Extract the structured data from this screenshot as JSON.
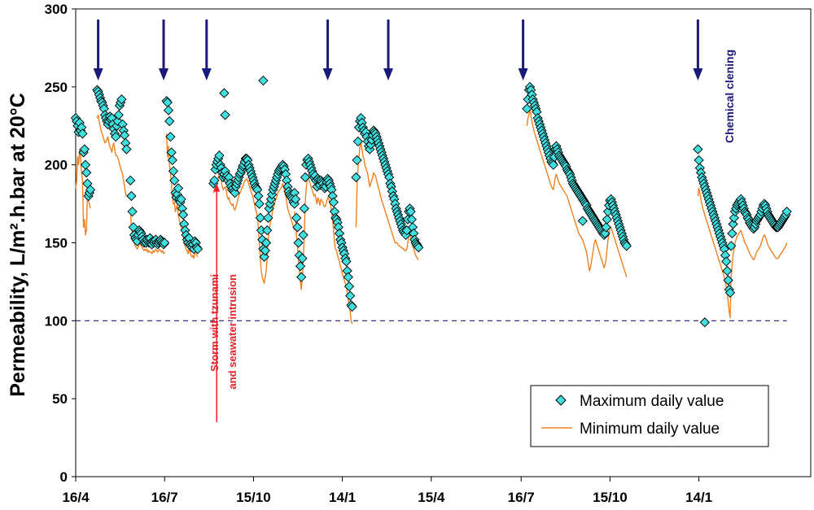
{
  "chart_data": {
    "type": "scatter",
    "title": "",
    "xlabel": "",
    "ylabel": "Permeability, L/m².h.bar at 20°C",
    "ylim": [
      0,
      300
    ],
    "yticks": [
      0,
      50,
      100,
      150,
      200,
      250,
      300
    ],
    "xlim": [
      0,
      745
    ],
    "xticks": [
      {
        "day": 0,
        "label": "16/4"
      },
      {
        "day": 91,
        "label": "16/7"
      },
      {
        "day": 182,
        "label": "15/10"
      },
      {
        "day": 273,
        "label": "14/1"
      },
      {
        "day": 364,
        "label": "15/4"
      },
      {
        "day": 456,
        "label": "16/7"
      },
      {
        "day": 547,
        "label": "15/10"
      },
      {
        "day": 638,
        "label": "14/1"
      }
    ],
    "threshold": {
      "value": 100,
      "x_start": 0,
      "x_end": 728,
      "color": "#1a1a7a"
    },
    "chemical_cleaning_days": [
      23,
      90,
      134,
      258,
      320,
      458,
      637
    ],
    "annotations": {
      "chemical_cleaning": "Chemical clening",
      "storm_line1": "Storm with tzunami",
      "storm_line2": "and seawater intrusion",
      "storm_arrow": {
        "day": 146,
        "from_value": 35,
        "to_value": 188
      }
    },
    "legend": {
      "position": "bottom-right",
      "entries": [
        {
          "label": "Maximum daily value",
          "marker": "diamond",
          "color": "#40e0e0"
        },
        {
          "label": "Minimum daily value",
          "marker": "line",
          "color": "#f08020"
        }
      ]
    },
    "segments": [
      {
        "start": 0,
        "max": [
          230,
          228,
          225,
          221,
          227,
          222,
          224,
          220,
          208,
          210,
          200,
          195,
          188,
          180,
          182,
          184
        ],
        "min": [
          185,
          190,
          205,
          200,
          210,
          205,
          195,
          190,
          160,
          165,
          155,
          158,
          180,
          178,
          175,
          172
        ]
      },
      {
        "start": 22,
        "max": [
          248,
          247,
          245,
          243,
          241,
          240,
          238,
          236,
          232,
          230,
          228,
          226,
          228,
          231,
          229,
          230,
          226,
          223,
          220,
          218,
          225,
          228,
          232,
          238,
          240,
          242,
          226,
          222,
          219,
          214,
          210
        ],
        "min": [
          230,
          232,
          228,
          225,
          222,
          220,
          218,
          216,
          214,
          215,
          216,
          218,
          214,
          212,
          210,
          208,
          212,
          214,
          210,
          206,
          206,
          205,
          203,
          200,
          198,
          196,
          194,
          190,
          186,
          182,
          180
        ]
      },
      {
        "start": 56,
        "max": [
          190,
          180,
          170,
          160,
          155,
          153,
          152,
          151,
          155,
          158,
          157,
          156,
          154,
          152,
          150,
          151,
          150,
          152,
          151,
          150,
          153,
          150,
          149,
          151,
          150,
          151,
          152,
          150,
          149,
          150,
          151,
          152,
          151,
          150,
          149,
          150
        ],
        "min": [
          172,
          160,
          156,
          151,
          150,
          148,
          147,
          146,
          147,
          150,
          149,
          148,
          147,
          146,
          145,
          146,
          145,
          146,
          144,
          145,
          144,
          144,
          143,
          145,
          144,
          145,
          146,
          145,
          144,
          145,
          146,
          145,
          144,
          145,
          143,
          144
        ]
      },
      {
        "start": 93,
        "max": [
          241,
          240,
          235,
          228,
          218,
          208,
          203,
          196,
          190,
          182,
          179,
          181,
          185,
          178,
          176,
          178,
          172,
          168,
          162,
          158,
          155,
          152,
          150,
          153,
          149,
          148,
          147,
          149,
          146,
          151,
          150,
          147,
          146
        ],
        "min": [
          220,
          205,
          212,
          200,
          195,
          188,
          180,
          175,
          176,
          170,
          172,
          175,
          168,
          165,
          162,
          160,
          158,
          155,
          150,
          148,
          146,
          145,
          143,
          146,
          144,
          142,
          141,
          142,
          140,
          143,
          146,
          142,
          141
        ]
      },
      {
        "start": 141,
        "max": [
          188,
          190,
          197,
          200,
          202,
          204,
          206,
          200,
          198,
          195,
          192,
          194,
          196,
          192,
          193,
          190,
          192,
          188,
          186,
          184,
          185,
          183,
          182,
          186,
          188,
          190,
          192,
          194,
          195,
          197,
          199,
          200,
          202,
          204,
          204,
          203,
          200,
          198,
          196,
          194,
          192,
          190,
          188,
          186,
          185,
          184,
          180,
          175,
          166,
          158,
          152,
          146,
          141,
          145,
          150,
          158,
          166,
          172,
          175,
          178,
          181,
          184,
          186,
          188,
          190,
          192,
          194,
          196,
          197,
          198,
          199,
          200,
          199,
          197,
          194,
          190,
          186,
          183,
          181,
          180,
          179,
          178,
          176,
          175
        ],
        "min": [
          182,
          184,
          186,
          188,
          190,
          192,
          195,
          194,
          190,
          186,
          184,
          185,
          186,
          184,
          180,
          178,
          179,
          176,
          175,
          174,
          175,
          172,
          171,
          173,
          175,
          178,
          180,
          182,
          183,
          185,
          186,
          188,
          190,
          190,
          191,
          190,
          188,
          186,
          184,
          182,
          180,
          178,
          175,
          172,
          170,
          166,
          160,
          150,
          140,
          132,
          128,
          126,
          124,
          128,
          132,
          140,
          150,
          158,
          162,
          165,
          168,
          172,
          174,
          176,
          178,
          180,
          182,
          183,
          184,
          185,
          186,
          188,
          186,
          182,
          180,
          176,
          172,
          170,
          168,
          166,
          164,
          162,
          160,
          158
        ]
      },
      {
        "start": 224,
        "max": [
          182,
          178,
          166,
          160,
          150,
          142,
          135,
          128,
          140,
          155,
          172,
          192,
          200,
          203,
          204,
          202,
          200,
          198,
          196,
          194,
          192,
          193,
          190,
          186,
          191,
          190,
          187,
          190,
          189,
          188,
          186,
          185,
          186,
          189,
          191,
          190,
          188,
          186,
          184,
          180,
          176,
          170,
          166,
          165,
          163,
          160,
          156,
          152,
          150,
          147,
          145,
          143,
          140,
          138,
          132,
          128,
          122,
          116,
          110,
          109
        ],
        "min": [
          170,
          165,
          155,
          148,
          140,
          132,
          125,
          120,
          128,
          140,
          155,
          176,
          185,
          190,
          193,
          190,
          188,
          186,
          184,
          182,
          180,
          181,
          178,
          175,
          179,
          177,
          174,
          178,
          177,
          176,
          174,
          173,
          174,
          177,
          179,
          178,
          176,
          174,
          170,
          165,
          158,
          150,
          146,
          145,
          142,
          140,
          138,
          135,
          133,
          130,
          128,
          126,
          124,
          122,
          118,
          114,
          110,
          106,
          100,
          98
        ]
      },
      {
        "start": 287,
        "max": [
          192,
          203,
          215,
          224,
          228,
          230,
          227,
          224,
          222,
          220,
          221,
          218,
          215,
          212,
          210,
          213,
          216,
          219,
          222,
          221,
          220,
          218,
          216,
          214,
          212,
          210,
          208,
          206,
          204,
          202,
          200,
          198,
          196,
          194,
          192,
          188,
          186,
          183,
          180,
          178,
          175,
          172,
          170,
          168,
          166,
          164,
          162,
          160,
          158,
          157,
          156,
          155,
          158,
          165,
          170,
          172,
          170,
          165,
          160,
          156,
          152,
          150,
          149,
          148,
          147
        ],
        "min": [
          160,
          185,
          198,
          205,
          212,
          214,
          210,
          206,
          204,
          200,
          198,
          196,
          194,
          190,
          186,
          188,
          190,
          192,
          195,
          194,
          193,
          190,
          188,
          185,
          183,
          180,
          178,
          176,
          174,
          172,
          170,
          168,
          166,
          164,
          162,
          160,
          158,
          156,
          154,
          152,
          150,
          150,
          150,
          149,
          148,
          148,
          147,
          147,
          146,
          146,
          145,
          145,
          146,
          150,
          154,
          156,
          154,
          150,
          148,
          146,
          144,
          142,
          141,
          140,
          139
        ]
      },
      {
        "start": 462,
        "max": [
          236,
          242,
          248,
          250,
          248,
          245,
          242,
          240,
          238,
          236,
          234,
          230,
          228,
          226,
          224,
          222,
          220,
          218,
          216,
          214,
          212,
          210,
          208,
          206,
          204,
          202,
          201,
          200,
          205,
          210,
          212,
          210,
          208,
          206,
          205,
          204,
          203,
          202,
          201,
          200,
          199,
          197,
          196,
          195,
          194,
          192,
          190,
          188,
          187,
          186,
          185,
          184,
          183,
          182,
          181,
          180,
          179,
          178,
          177,
          176,
          175,
          174,
          172,
          171,
          170,
          169,
          168,
          167,
          166,
          165,
          164,
          163,
          162,
          161,
          160,
          159,
          158,
          157,
          156,
          155,
          156,
          160,
          165,
          170,
          174,
          177,
          178,
          176,
          174,
          172,
          170,
          168,
          166,
          164,
          162,
          160,
          158,
          156,
          154,
          152,
          150,
          149,
          148
        ],
        "min": [
          225,
          230,
          232,
          236,
          232,
          228,
          225,
          222,
          220,
          218,
          216,
          214,
          212,
          210,
          208,
          206,
          204,
          202,
          200,
          198,
          196,
          194,
          192,
          190,
          188,
          186,
          185,
          184,
          188,
          192,
          194,
          192,
          190,
          188,
          187,
          186,
          185,
          184,
          183,
          182,
          181,
          180,
          178,
          176,
          174,
          172,
          170,
          168,
          166,
          164,
          162,
          160,
          158,
          156,
          155,
          154,
          153,
          152,
          150,
          148,
          146,
          144,
          140,
          136,
          132,
          134,
          138,
          142,
          146,
          150,
          152,
          150,
          148,
          146,
          144,
          142,
          140,
          138,
          136,
          134,
          136,
          140,
          146,
          152,
          156,
          160,
          160,
          158,
          156,
          154,
          152,
          150,
          148,
          146,
          144,
          142,
          140,
          138,
          136,
          134,
          132,
          130,
          128
        ]
      },
      {
        "start": 637,
        "max": [
          210,
          203,
          198,
          195,
          192,
          190,
          188,
          186,
          184,
          182,
          180,
          178,
          176,
          174,
          172,
          170,
          168,
          166,
          164,
          162,
          160,
          158,
          156,
          154,
          152,
          150,
          148,
          146,
          142,
          138,
          132,
          126,
          120,
          118,
          148,
          156,
          162,
          166,
          170,
          172,
          174,
          175,
          176,
          177,
          178,
          176,
          174,
          172,
          170,
          169,
          168,
          166,
          165,
          163,
          162,
          161,
          160,
          159,
          160,
          162,
          164,
          165,
          166,
          167,
          168,
          170,
          172,
          174,
          175,
          174,
          172,
          170,
          168,
          167,
          166,
          165,
          164,
          163,
          162,
          161,
          160,
          160,
          160,
          161,
          162,
          163,
          164,
          165,
          166,
          167,
          168,
          170
        ],
        "min": [
          180,
          185,
          182,
          178,
          175,
          172,
          170,
          168,
          166,
          164,
          162,
          160,
          158,
          156,
          154,
          152,
          150,
          148,
          146,
          144,
          142,
          140,
          138,
          136,
          134,
          132,
          130,
          128,
          125,
          122,
          118,
          112,
          106,
          102,
          128,
          136,
          142,
          146,
          150,
          152,
          154,
          155,
          156,
          157,
          158,
          156,
          154,
          152,
          150,
          149,
          148,
          146,
          145,
          143,
          142,
          141,
          140,
          139,
          140,
          142,
          144,
          145,
          146,
          147,
          148,
          150,
          152,
          154,
          155,
          154,
          152,
          150,
          148,
          147,
          146,
          145,
          144,
          143,
          142,
          141,
          140,
          140,
          140,
          141,
          142,
          143,
          144,
          145,
          146,
          147,
          148,
          150
        ]
      }
    ],
    "outliers": [
      {
        "day": 152,
        "value": 246
      },
      {
        "day": 153,
        "value": 232
      },
      {
        "day": 192,
        "value": 254
      },
      {
        "day": 644,
        "value": 99
      },
      {
        "day": 519,
        "value": 164
      }
    ]
  }
}
